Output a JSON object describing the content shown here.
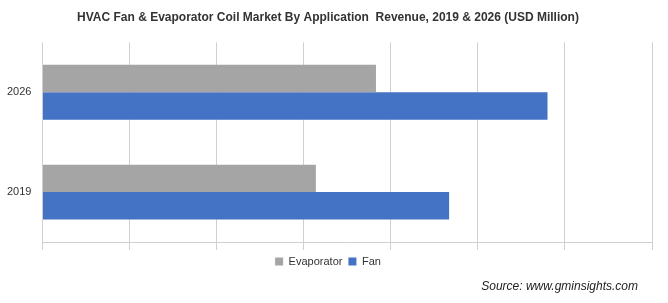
{
  "chart_data": {
    "type": "bar",
    "title": "HVAC Fan & Evaporator Coil Market By Application  Revenue, 2019 & 2026 (USD Million)",
    "annotations": [
      "Source: www.gminsights.com"
    ],
    "orientation": "horizontal",
    "categories": [
      "2026",
      "2019"
    ],
    "series": [
      {
        "name": "Evaporator",
        "color": "#a5a5a5",
        "values": [
          383,
          314
        ]
      },
      {
        "name": "Fan",
        "color": "#4472c4",
        "values": [
          580,
          467
        ]
      }
    ],
    "xlim": [
      0,
      700
    ],
    "xticks": [
      0,
      100,
      200,
      300,
      400,
      500,
      600,
      700
    ],
    "grid": true,
    "legend": "bottom",
    "tick_labels": "y"
  }
}
